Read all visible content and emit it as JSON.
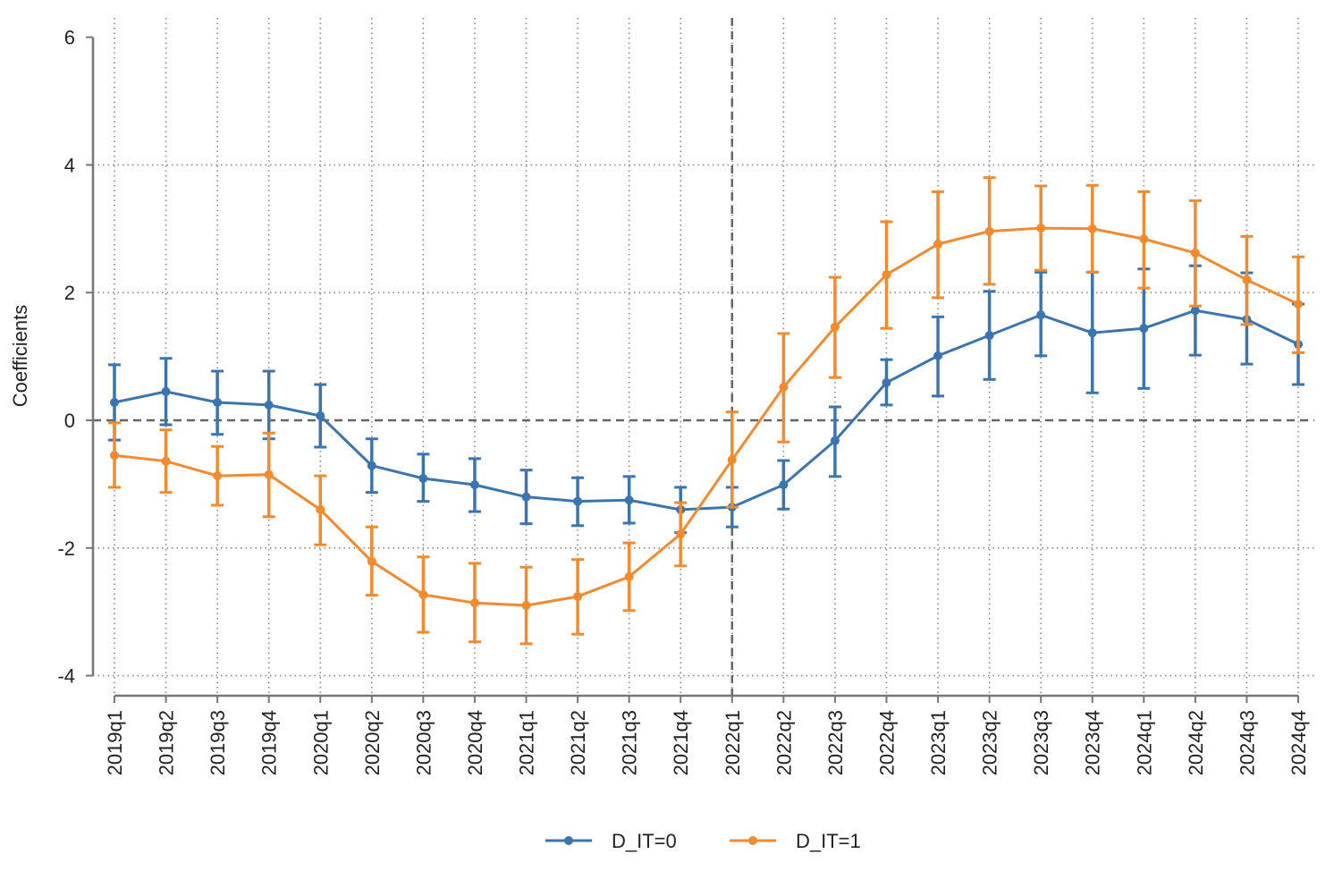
{
  "chart_data": {
    "type": "line",
    "title": "",
    "xlabel": "",
    "ylabel": "Coefficients",
    "ylim": [
      -4,
      6
    ],
    "yticks": [
      6,
      4,
      2,
      0,
      -2,
      -4
    ],
    "grid": true,
    "legend_placement": "bottom",
    "reference_lines": {
      "y": 0,
      "x": "2022q1"
    },
    "categories": [
      "2019q1",
      "2019q2",
      "2019q3",
      "2019q4",
      "2020q1",
      "2020q2",
      "2020q3",
      "2020q4",
      "2021q1",
      "2021q2",
      "2021q3",
      "2021q4",
      "2022q1",
      "2022q2",
      "2022q3",
      "2022q4",
      "2023q1",
      "2023q2",
      "2023q3",
      "2023q4",
      "2024q1",
      "2024q2",
      "2024q3",
      "2024q4"
    ],
    "series": [
      {
        "name": "D_IT=0",
        "color": "#3a75b0",
        "values": [
          0.28,
          0.45,
          0.28,
          0.24,
          0.07,
          -0.71,
          -0.91,
          -1.01,
          -1.2,
          -1.27,
          -1.25,
          -1.4,
          -1.36,
          -1.01,
          -0.32,
          0.59,
          1.01,
          1.33,
          1.65,
          1.37,
          1.44,
          1.72,
          1.58,
          1.19
        ],
        "upper": [
          0.87,
          0.97,
          0.77,
          0.77,
          0.56,
          -0.29,
          -0.53,
          -0.6,
          -0.78,
          -0.9,
          -0.88,
          -1.05,
          -1.05,
          -0.63,
          0.21,
          0.95,
          1.62,
          2.02,
          2.32,
          2.32,
          2.37,
          2.42,
          2.31,
          1.82
        ],
        "lower": [
          -0.31,
          -0.07,
          -0.22,
          -0.29,
          -0.42,
          -1.13,
          -1.27,
          -1.43,
          -1.62,
          -1.65,
          -1.61,
          -1.76,
          -1.67,
          -1.39,
          -0.88,
          0.24,
          0.38,
          0.64,
          1.01,
          0.43,
          0.5,
          1.02,
          0.88,
          0.56
        ]
      },
      {
        "name": "D_IT=1",
        "color": "#f28a30",
        "values": [
          -0.55,
          -0.64,
          -0.87,
          -0.85,
          -1.4,
          -2.21,
          -2.73,
          -2.86,
          -2.9,
          -2.76,
          -2.45,
          -1.78,
          -0.62,
          0.52,
          1.46,
          2.28,
          2.76,
          2.96,
          3.01,
          3.0,
          2.84,
          2.62,
          2.2,
          1.82
        ],
        "upper": [
          -0.04,
          -0.15,
          -0.41,
          -0.2,
          -0.87,
          -1.67,
          -2.14,
          -2.24,
          -2.3,
          -2.18,
          -1.92,
          -1.29,
          0.13,
          1.36,
          2.24,
          3.11,
          3.58,
          3.8,
          3.67,
          3.68,
          3.58,
          3.44,
          2.88,
          2.56
        ],
        "lower": [
          -1.05,
          -1.13,
          -1.33,
          -1.51,
          -1.95,
          -2.74,
          -3.32,
          -3.47,
          -3.5,
          -3.35,
          -2.98,
          -2.28,
          -1.36,
          -0.34,
          0.67,
          1.44,
          1.92,
          2.13,
          2.35,
          2.32,
          2.07,
          1.79,
          1.5,
          1.06
        ]
      }
    ]
  }
}
